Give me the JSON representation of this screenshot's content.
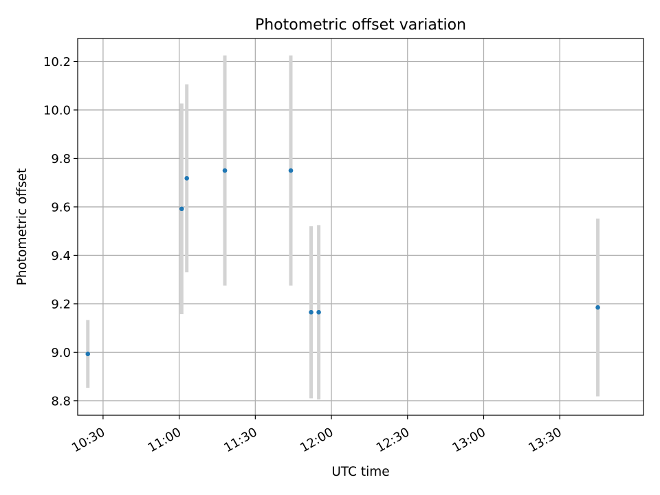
{
  "chart_data": {
    "type": "scatter",
    "title": "Photometric offset variation",
    "xlabel": "UTC time",
    "ylabel": "Photometric offset",
    "x_ticks": [
      "10:30",
      "11:00",
      "11:30",
      "12:00",
      "12:30",
      "13:00",
      "13:30"
    ],
    "y_ticks": [
      "8.8",
      "9.0",
      "9.2",
      "9.4",
      "9.6",
      "9.8",
      "10.0",
      "10.2"
    ],
    "xlim": [
      "10:20",
      "14:03"
    ],
    "ylim": [
      8.74,
      10.295
    ],
    "grid": true,
    "colors": {
      "point": "#1f77b4",
      "errorbar": "#d3d3d3",
      "grid": "#b0b0b0"
    },
    "series": [
      {
        "points": [
          {
            "x": "10:24",
            "y": 8.993,
            "err": 0.14
          },
          {
            "x": "11:01",
            "y": 9.592,
            "err": 0.435
          },
          {
            "x": "11:03",
            "y": 9.718,
            "err": 0.388
          },
          {
            "x": "11:18",
            "y": 9.75,
            "err": 0.475
          },
          {
            "x": "11:44",
            "y": 9.75,
            "err": 0.475
          },
          {
            "x": "11:52",
            "y": 9.165,
            "err": 0.355
          },
          {
            "x": "11:55",
            "y": 9.165,
            "err": 0.36
          },
          {
            "x": "13:45",
            "y": 9.185,
            "err": 0.367
          }
        ]
      }
    ]
  }
}
